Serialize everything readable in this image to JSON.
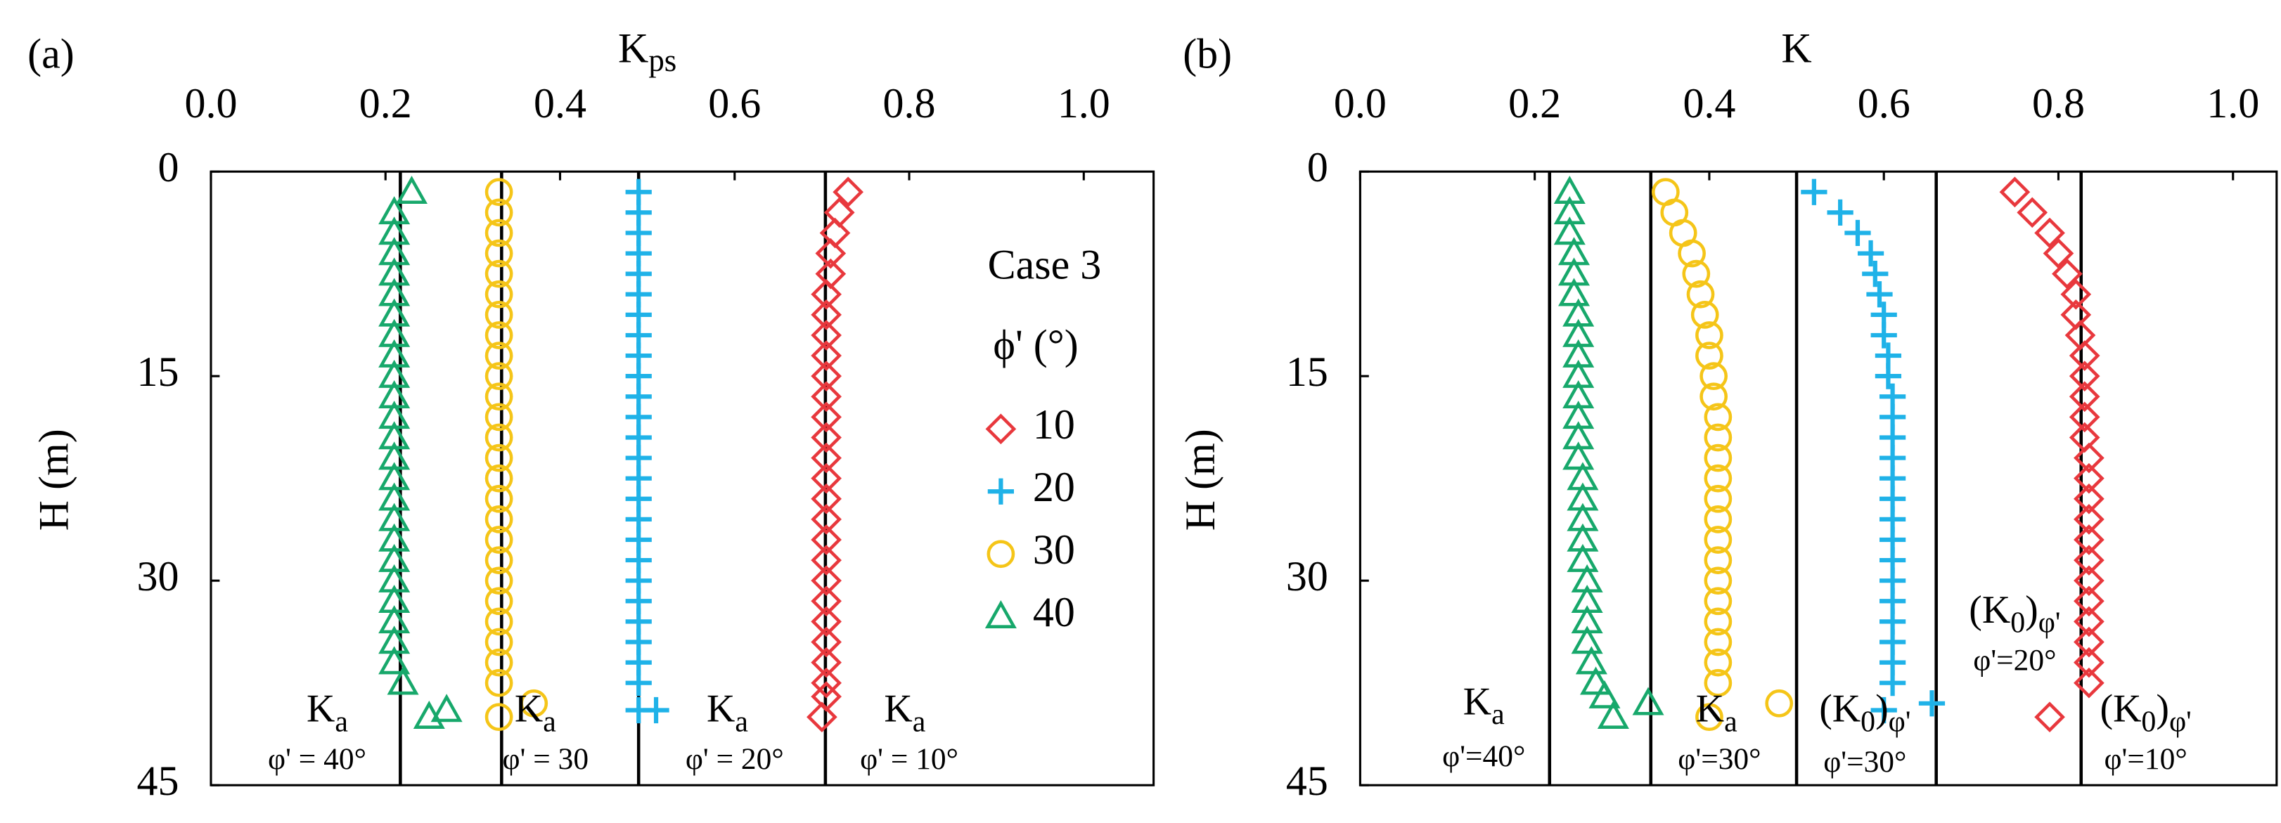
{
  "chart_data": [
    {
      "type": "scatter",
      "panel_label": "(a)",
      "xlabel": {
        "k": "K",
        "sub": "ps"
      },
      "ylabel": "H (m)",
      "xlim": [
        0,
        1.08
      ],
      "ylim": [
        0,
        45
      ],
      "y_inverted": true,
      "xticks": [
        {
          "value": 0,
          "label": "0.0"
        },
        0.2,
        0.4,
        0.6,
        0.8,
        {
          "value": 1,
          "label": "1.0"
        }
      ],
      "yticks": [
        0,
        15,
        30,
        45
      ],
      "vlines": [
        0.217,
        0.333,
        0.49,
        0.704
      ],
      "legend": true,
      "legend_title": "Case 3",
      "legend_subtitle": "ϕ' (°)",
      "annotations": [
        {
          "k": "K",
          "sub": "a",
          "line2": "φ' = 40°"
        },
        {
          "k": "K",
          "sub": "a",
          "line2": "φ' = 30"
        },
        {
          "k": "K",
          "sub": "a",
          "line2": "φ' = 20°"
        },
        {
          "k": "K",
          "sub": "a",
          "line2": "φ' = 10°"
        }
      ],
      "series": [
        {
          "name": "10",
          "color": "#e8383d",
          "marker": "diamond",
          "x": [
            0.73,
            0.72,
            0.715,
            0.71,
            0.71,
            0.705,
            0.705,
            0.705,
            0.705,
            0.705,
            0.705,
            0.705,
            0.705,
            0.705,
            0.705,
            0.705,
            0.705,
            0.705,
            0.705,
            0.705,
            0.705,
            0.705,
            0.705,
            0.705,
            0.705,
            0.705,
            0.7
          ],
          "y": [
            1.5,
            3,
            4.5,
            6,
            7.5,
            9,
            10.5,
            12,
            13.5,
            15,
            16.5,
            18,
            19.5,
            21,
            22.5,
            24,
            25.5,
            27,
            28.5,
            30,
            31.5,
            33,
            34.5,
            36,
            37.5,
            38.5,
            40
          ]
        },
        {
          "name": "20",
          "color": "#1fb2e8",
          "marker": "plus",
          "x": [
            0.49,
            0.49,
            0.49,
            0.49,
            0.49,
            0.49,
            0.49,
            0.49,
            0.49,
            0.49,
            0.49,
            0.49,
            0.49,
            0.49,
            0.49,
            0.49,
            0.49,
            0.49,
            0.49,
            0.49,
            0.49,
            0.49,
            0.49,
            0.49,
            0.49,
            0.49,
            0.51
          ],
          "y": [
            1.5,
            3,
            4.5,
            6,
            7.5,
            9,
            10.5,
            12,
            13.5,
            15,
            16.5,
            18,
            19.5,
            21,
            22.5,
            24,
            25.5,
            27,
            28.5,
            30,
            31.5,
            33,
            34.5,
            36,
            37.5,
            39.5,
            39.5
          ]
        },
        {
          "name": "30",
          "color": "#f5c518",
          "marker": "circle",
          "x": [
            0.33,
            0.33,
            0.33,
            0.33,
            0.33,
            0.33,
            0.33,
            0.33,
            0.33,
            0.33,
            0.33,
            0.33,
            0.33,
            0.33,
            0.33,
            0.33,
            0.33,
            0.33,
            0.33,
            0.33,
            0.33,
            0.33,
            0.33,
            0.33,
            0.33,
            0.37,
            0.33
          ],
          "y": [
            1.5,
            3,
            4.5,
            6,
            7.5,
            9,
            10.5,
            12,
            13.5,
            15,
            16.5,
            18,
            19.5,
            21,
            22.5,
            24,
            25.5,
            27,
            28.5,
            30,
            31.5,
            33,
            34.5,
            36,
            37.5,
            39,
            40
          ]
        },
        {
          "name": "40",
          "color": "#17a86b",
          "marker": "triangle",
          "x": [
            0.23,
            0.21,
            0.21,
            0.21,
            0.21,
            0.21,
            0.21,
            0.21,
            0.21,
            0.21,
            0.21,
            0.21,
            0.21,
            0.21,
            0.21,
            0.21,
            0.21,
            0.21,
            0.21,
            0.21,
            0.21,
            0.21,
            0.21,
            0.21,
            0.22,
            0.27,
            0.25
          ],
          "y": [
            1.5,
            3,
            4.5,
            6,
            7.5,
            9,
            10.5,
            12,
            13.5,
            15,
            16.5,
            18,
            19.5,
            21,
            22.5,
            24,
            25.5,
            27,
            28.5,
            30,
            31.5,
            33,
            34.5,
            36,
            37.5,
            39.5,
            40
          ]
        }
      ]
    },
    {
      "type": "scatter",
      "panel_label": "(b)",
      "xlabel": {
        "k": "K"
      },
      "ylabel": "H (m)",
      "xlim": [
        0,
        1.05
      ],
      "ylim": [
        0,
        45
      ],
      "y_inverted": true,
      "xticks": [
        {
          "value": 0,
          "label": "0.0"
        },
        0.2,
        0.4,
        0.6,
        0.8,
        {
          "value": 1,
          "label": "1.0"
        }
      ],
      "yticks": [
        0,
        15,
        30,
        45
      ],
      "vlines": [
        0.217,
        0.333,
        0.5,
        0.66,
        0.826
      ],
      "legend": false,
      "annotations": [
        {
          "k": "K",
          "sub": "a",
          "line2": "φ'=40°"
        },
        {
          "k": "K",
          "sub": "a",
          "line2": "φ'=30°"
        },
        {
          "k": "(K",
          "sub": "0",
          "close": ")",
          "sub2": "φ'",
          "line2": "φ'=30°"
        },
        {
          "k": "(K",
          "sub": "0",
          "close": ")",
          "sub2": "φ'",
          "line2": "φ'=20°"
        },
        {
          "k": "(K",
          "sub": "0",
          "close": ")",
          "sub2": "φ'",
          "line2": "φ'=10°"
        }
      ],
      "series": [
        {
          "color": "#e8383d",
          "marker": "diamond",
          "x": [
            0.75,
            0.77,
            0.79,
            0.8,
            0.81,
            0.82,
            0.82,
            0.825,
            0.83,
            0.83,
            0.83,
            0.83,
            0.83,
            0.835,
            0.835,
            0.835,
            0.835,
            0.835,
            0.835,
            0.835,
            0.835,
            0.835,
            0.835,
            0.835,
            0.835,
            0.79
          ],
          "y": [
            1.5,
            3,
            4.5,
            6,
            7.5,
            9,
            10.5,
            12,
            13.5,
            15,
            16.5,
            18,
            19.5,
            21,
            22.5,
            24,
            25.5,
            27,
            28.5,
            30,
            31.5,
            33,
            34.5,
            36,
            37.5,
            40
          ]
        },
        {
          "color": "#1fb2e8",
          "marker": "plus",
          "x": [
            0.52,
            0.55,
            0.57,
            0.585,
            0.59,
            0.595,
            0.6,
            0.6,
            0.605,
            0.605,
            0.61,
            0.61,
            0.61,
            0.61,
            0.61,
            0.61,
            0.61,
            0.61,
            0.61,
            0.61,
            0.61,
            0.61,
            0.61,
            0.61,
            0.61,
            0.655,
            0.6
          ],
          "y": [
            1.5,
            3,
            4.5,
            6,
            7.5,
            9,
            10.5,
            12,
            13.5,
            15,
            16.5,
            18,
            19.5,
            21,
            22.5,
            24,
            25.5,
            27,
            28.5,
            30,
            31.5,
            33,
            34.5,
            36,
            37.5,
            39,
            39.5
          ]
        },
        {
          "color": "#f5c518",
          "marker": "circle",
          "x": [
            0.35,
            0.36,
            0.37,
            0.38,
            0.385,
            0.39,
            0.395,
            0.4,
            0.4,
            0.405,
            0.405,
            0.41,
            0.41,
            0.41,
            0.41,
            0.41,
            0.41,
            0.41,
            0.41,
            0.41,
            0.41,
            0.41,
            0.41,
            0.41,
            0.41,
            0.48,
            0.4
          ],
          "y": [
            1.5,
            3,
            4.5,
            6,
            7.5,
            9,
            10.5,
            12,
            13.5,
            15,
            16.5,
            18,
            19.5,
            21,
            22.5,
            24,
            25.5,
            27,
            28.5,
            30,
            31.5,
            33,
            34.5,
            36,
            37.5,
            39,
            40
          ]
        },
        {
          "color": "#17a86b",
          "marker": "triangle",
          "x": [
            0.24,
            0.24,
            0.24,
            0.245,
            0.245,
            0.245,
            0.25,
            0.25,
            0.25,
            0.25,
            0.25,
            0.25,
            0.25,
            0.25,
            0.255,
            0.255,
            0.255,
            0.255,
            0.255,
            0.26,
            0.26,
            0.26,
            0.26,
            0.265,
            0.27,
            0.28,
            0.29,
            0.33
          ],
          "y": [
            1.5,
            3,
            4.5,
            6,
            7.5,
            9,
            10.5,
            12,
            13.5,
            15,
            16.5,
            18,
            19.5,
            21,
            22.5,
            24,
            25.5,
            27,
            28.5,
            30,
            31.5,
            33,
            34.5,
            36,
            37.5,
            38.5,
            40,
            39
          ]
        }
      ]
    }
  ]
}
